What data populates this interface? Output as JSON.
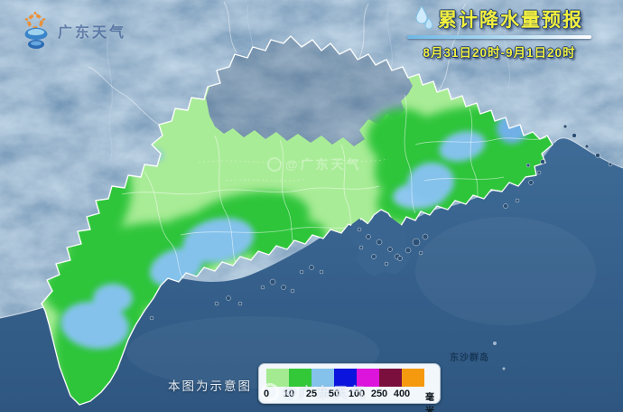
{
  "header": {
    "logo_text": "广东天气",
    "title": "累计降水量预报",
    "date_range": "8月31日20时-9月1日20时"
  },
  "map": {
    "island_label": "东沙群岛",
    "watermark_text": "@广东天气"
  },
  "legend": {
    "note": "本图为示意图",
    "values": [
      "0",
      "10",
      "25",
      "50",
      "100",
      "250",
      "400"
    ],
    "unit": "毫米",
    "colors": [
      "#a3ea91",
      "#32c838",
      "#84c2ec",
      "#0a14dc",
      "#dc14dc",
      "#7a0e3c",
      "#f59a0f"
    ]
  },
  "colors": {
    "title_text": "#f2ef3e",
    "terrain_base": "#4e7ba6",
    "sea_top": "#3e6b97",
    "sea_bottom": "#2e5680",
    "rain_0_10": "#a9ec97",
    "rain_10_25": "#2fc53a",
    "rain_25_50": "#84c2ec",
    "province_border": "#ffffff"
  }
}
